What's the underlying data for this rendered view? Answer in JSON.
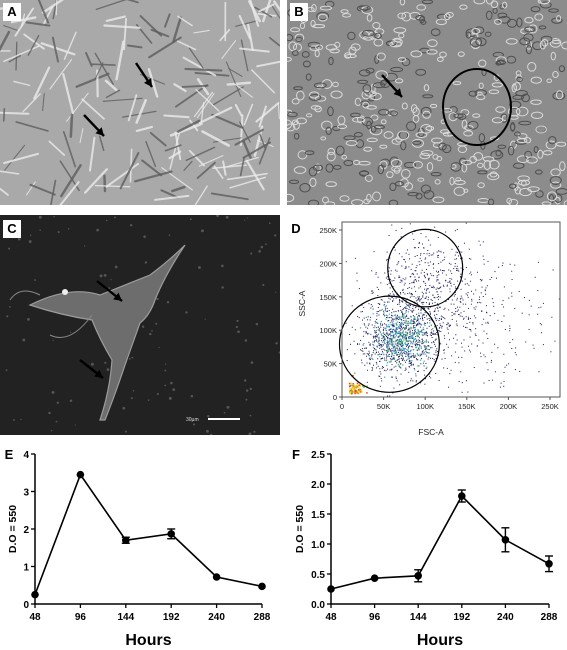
{
  "panels": {
    "A": {
      "label": "A"
    },
    "B": {
      "label": "B"
    },
    "C": {
      "label": "C",
      "scale_text": "30µm"
    },
    "D": {
      "label": "D"
    },
    "E": {
      "label": "E"
    },
    "F": {
      "label": "F"
    }
  },
  "chart_data": [
    {
      "type": "scatter",
      "panel": "D",
      "xlabel": "FSC-A",
      "ylabel": "SSC-A",
      "xlim": [
        0,
        262000
      ],
      "ylim": [
        0,
        262000
      ],
      "x_ticks": [
        {
          "v": 0,
          "t": "0"
        },
        {
          "v": 50000,
          "t": "50K"
        },
        {
          "v": 100000,
          "t": "100K"
        },
        {
          "v": 150000,
          "t": "150K"
        },
        {
          "v": 200000,
          "t": "200K"
        },
        {
          "v": 250000,
          "t": "250K"
        }
      ],
      "y_ticks": [
        {
          "v": 0,
          "t": "0"
        },
        {
          "v": 50000,
          "t": "50K"
        },
        {
          "v": 100000,
          "t": "100K"
        },
        {
          "v": 150000,
          "t": "150K"
        },
        {
          "v": 200000,
          "t": "200K"
        },
        {
          "v": 250000,
          "t": "250K"
        }
      ],
      "gates": [
        {
          "cx": 100000,
          "cy": 193000,
          "rx": 45000,
          "ry": 58000
        },
        {
          "cx": 57000,
          "cy": 79000,
          "rx": 60000,
          "ry": 72000
        }
      ]
    },
    {
      "type": "line",
      "panel": "E",
      "xlabel": "Hours",
      "ylabel": "D.O = 550",
      "x": [
        48,
        96,
        144,
        192,
        240,
        288
      ],
      "values": [
        0.25,
        3.45,
        1.7,
        1.87,
        0.72,
        0.47
      ],
      "errors": [
        0,
        0,
        0.08,
        0.13,
        0,
        0
      ],
      "ylim": [
        0,
        4
      ],
      "y_ticks": [
        0,
        1,
        2,
        3,
        4
      ]
    },
    {
      "type": "line",
      "panel": "F",
      "xlabel": "Hours",
      "ylabel": "D.O = 550",
      "x": [
        48,
        96,
        144,
        192,
        240,
        288
      ],
      "values": [
        0.25,
        0.43,
        0.47,
        1.8,
        1.07,
        0.67
      ],
      "errors": [
        0,
        0,
        0.1,
        0.1,
        0.2,
        0.13
      ],
      "ylim": [
        0,
        2.5
      ],
      "y_ticks": [
        "0.0",
        "0.5",
        "1.0",
        "1.5",
        "2.0",
        "2.5"
      ]
    }
  ]
}
